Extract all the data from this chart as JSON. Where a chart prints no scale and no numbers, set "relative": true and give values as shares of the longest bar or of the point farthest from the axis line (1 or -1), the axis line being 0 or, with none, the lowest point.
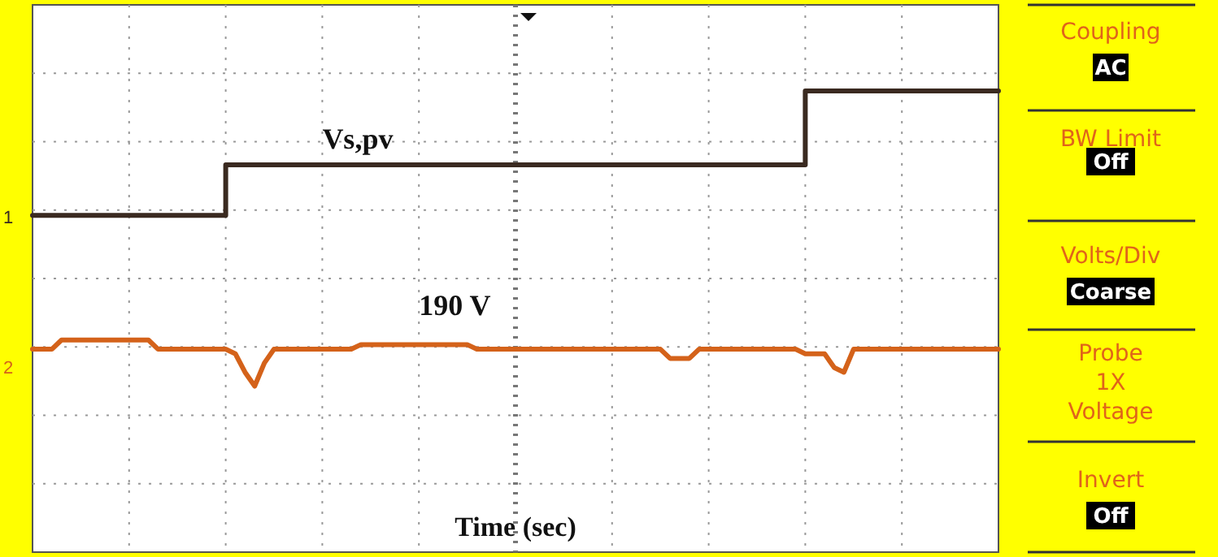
{
  "chart_data": [
    {
      "type": "line",
      "relative": true,
      "xlabel": "Time (sec)",
      "grid": true,
      "categories": [
        null,
        null,
        null,
        null,
        null,
        null,
        null,
        null,
        null,
        null,
        null,
        null,
        null,
        null,
        null,
        null,
        null,
        null,
        null,
        null,
        null,
        null,
        null,
        null,
        null,
        null,
        null,
        null,
        null,
        null,
        null,
        null,
        null,
        null,
        null,
        null,
        null,
        null,
        null,
        null,
        null,
        null,
        null,
        null,
        null,
        null,
        null,
        null,
        null,
        null,
        null,
        null,
        null,
        null,
        null,
        null,
        null,
        null,
        null,
        null,
        null,
        null,
        null,
        null,
        null,
        null,
        null,
        null,
        null,
        null,
        null,
        null,
        null,
        null,
        null,
        null,
        null,
        null,
        null,
        null,
        null,
        null,
        null,
        null,
        null,
        null,
        null,
        null,
        null,
        null,
        null,
        null,
        null,
        null,
        null,
        null,
        null,
        null,
        null,
        null,
        null
      ],
      "series": [
        {
          "name": "1",
          "type": "step",
          "color": "#3a2a20",
          "values": [
            0.73,
            0.73,
            0.73,
            0.73,
            0.73,
            0.73,
            0.73,
            0.73,
            0.73,
            0.73,
            0.73,
            0.73,
            0.73,
            0.73,
            0.73,
            0.73,
            0.73,
            0.73,
            0.73,
            0.73,
            0.84,
            0.84,
            0.84,
            0.84,
            0.84,
            0.84,
            0.84,
            0.84,
            0.84,
            0.84,
            0.84,
            0.84,
            0.84,
            0.84,
            0.84,
            0.84,
            0.84,
            0.84,
            0.84,
            0.84,
            0.84,
            0.84,
            0.84,
            0.84,
            0.84,
            0.84,
            0.84,
            0.84,
            0.84,
            0.84,
            0.84,
            0.84,
            0.84,
            0.84,
            0.84,
            0.84,
            0.84,
            0.84,
            0.84,
            0.84,
            0.84,
            0.84,
            0.84,
            0.84,
            0.84,
            0.84,
            0.84,
            0.84,
            0.84,
            0.84,
            0.84,
            0.84,
            0.84,
            0.84,
            0.84,
            0.84,
            0.84,
            0.84,
            0.84,
            0.84,
            1,
            1,
            1,
            1,
            1,
            1,
            1,
            1,
            1,
            1,
            1,
            1,
            1,
            1,
            1,
            1,
            1,
            1,
            1,
            1,
            1
          ]
        },
        {
          "name": "2",
          "type": "line",
          "color": "#d4621a",
          "values": [
            0.44,
            0.44,
            0.44,
            0.46,
            0.46,
            0.46,
            0.46,
            0.46,
            0.46,
            0.46,
            0.46,
            0.46,
            0.46,
            0.44,
            0.44,
            0.44,
            0.44,
            0.44,
            0.44,
            0.44,
            0.44,
            0.43,
            0.39,
            0.36,
            0.41,
            0.44,
            0.44,
            0.44,
            0.44,
            0.44,
            0.44,
            0.44,
            0.44,
            0.44,
            0.45,
            0.45,
            0.45,
            0.45,
            0.45,
            0.45,
            0.45,
            0.45,
            0.45,
            0.45,
            0.45,
            0.45,
            0.44,
            0.44,
            0.44,
            0.44,
            0.44,
            0.44,
            0.44,
            0.44,
            0.44,
            0.44,
            0.44,
            0.44,
            0.44,
            0.44,
            0.44,
            0.44,
            0.44,
            0.44,
            0.44,
            0.44,
            0.42,
            0.42,
            0.42,
            0.44,
            0.44,
            0.44,
            0.44,
            0.44,
            0.44,
            0.44,
            0.44,
            0.44,
            0.44,
            0.44,
            0.43,
            0.43,
            0.43,
            0.4,
            0.39,
            0.44,
            0.44,
            0.44,
            0.44,
            0.44,
            0.44,
            0.44,
            0.44,
            0.44,
            0.44,
            0.44,
            0.44,
            0.44,
            0.44,
            0.44,
            0.44
          ]
        }
      ],
      "annotations": [
        "Vs,pv",
        "190 V"
      ]
    },
    {
      "type": "other",
      "annotations": [
        "Coupling",
        "AC",
        "BW Limit",
        "Off",
        "Volts/Div",
        "Coarse",
        "Probe",
        "1X",
        "Voltage",
        "Invert",
        "Off"
      ]
    }
  ]
}
